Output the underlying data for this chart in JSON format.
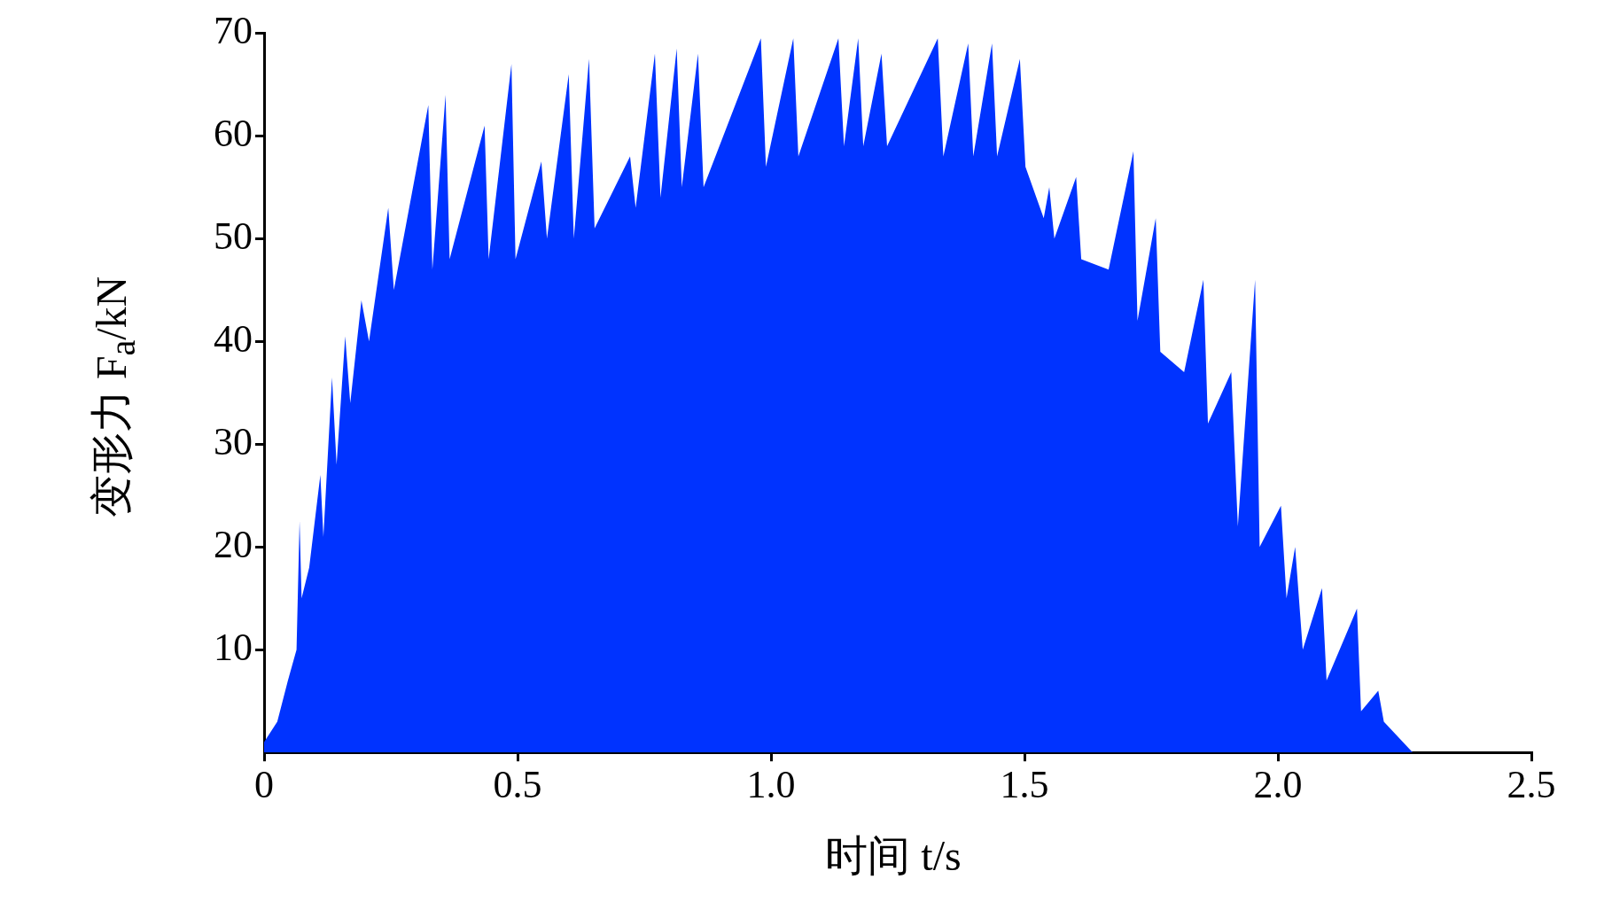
{
  "chart_data": {
    "type": "area",
    "xlabel": "时间 t/s",
    "ylabel": "变形力 F$_{a}$/kN",
    "x": [
      0,
      0.026,
      0.047,
      0.064,
      0.07,
      0.074,
      0.089,
      0.111,
      0.117,
      0.134,
      0.143,
      0.16,
      0.17,
      0.192,
      0.207,
      0.245,
      0.256,
      0.324,
      0.332,
      0.358,
      0.366,
      0.435,
      0.443,
      0.488,
      0.496,
      0.547,
      0.558,
      0.601,
      0.611,
      0.641,
      0.652,
      0.722,
      0.733,
      0.771,
      0.782,
      0.814,
      0.824,
      0.856,
      0.867,
      0.98,
      0.99,
      1.044,
      1.054,
      1.133,
      1.144,
      1.172,
      1.182,
      1.218,
      1.229,
      1.329,
      1.34,
      1.389,
      1.399,
      1.436,
      1.446,
      1.491,
      1.502,
      1.538,
      1.549,
      1.559,
      1.602,
      1.612,
      1.666,
      1.715,
      1.723,
      1.759,
      1.768,
      1.815,
      1.853,
      1.862,
      1.908,
      1.921,
      1.955,
      1.964,
      2.006,
      2.017,
      2.034,
      2.049,
      2.087,
      2.096,
      2.156,
      2.164,
      2.198,
      2.209,
      2.266
    ],
    "series": [
      {
        "color": "#0033ff",
        "values": [
          1,
          3,
          7,
          10,
          22.5,
          15,
          18,
          27,
          21,
          36.5,
          28,
          40.5,
          34,
          44,
          40,
          53,
          45,
          63,
          47,
          64,
          48,
          61,
          48,
          67,
          48,
          57.5,
          50,
          66,
          50,
          67.5,
          51,
          58,
          53,
          68,
          54,
          68.5,
          55,
          68,
          55,
          69.5,
          57,
          69.5,
          58,
          69.5,
          59,
          69.5,
          59,
          68,
          59,
          69.5,
          58,
          69,
          58,
          69,
          58,
          67.5,
          57,
          52,
          55,
          50,
          56,
          48,
          47,
          58.5,
          42,
          52,
          39,
          37,
          46,
          32,
          37,
          22,
          46,
          20,
          24,
          15,
          20,
          10,
          16,
          7,
          14,
          4,
          6,
          3,
          0
        ]
      }
    ],
    "xlim": [
      0,
      2.5
    ],
    "xticks": [
      0,
      {
        "value": 0.5,
        "label": "0.5"
      },
      {
        "value": 1,
        "label": "1.0"
      },
      {
        "value": 1.5,
        "label": "1.5"
      },
      {
        "value": 2,
        "label": "2.0"
      },
      {
        "value": 2.5,
        "label": "2.5"
      }
    ],
    "ylim": [
      0,
      70
    ],
    "yticks": [
      10,
      20,
      30,
      40,
      50,
      60,
      70
    ]
  }
}
